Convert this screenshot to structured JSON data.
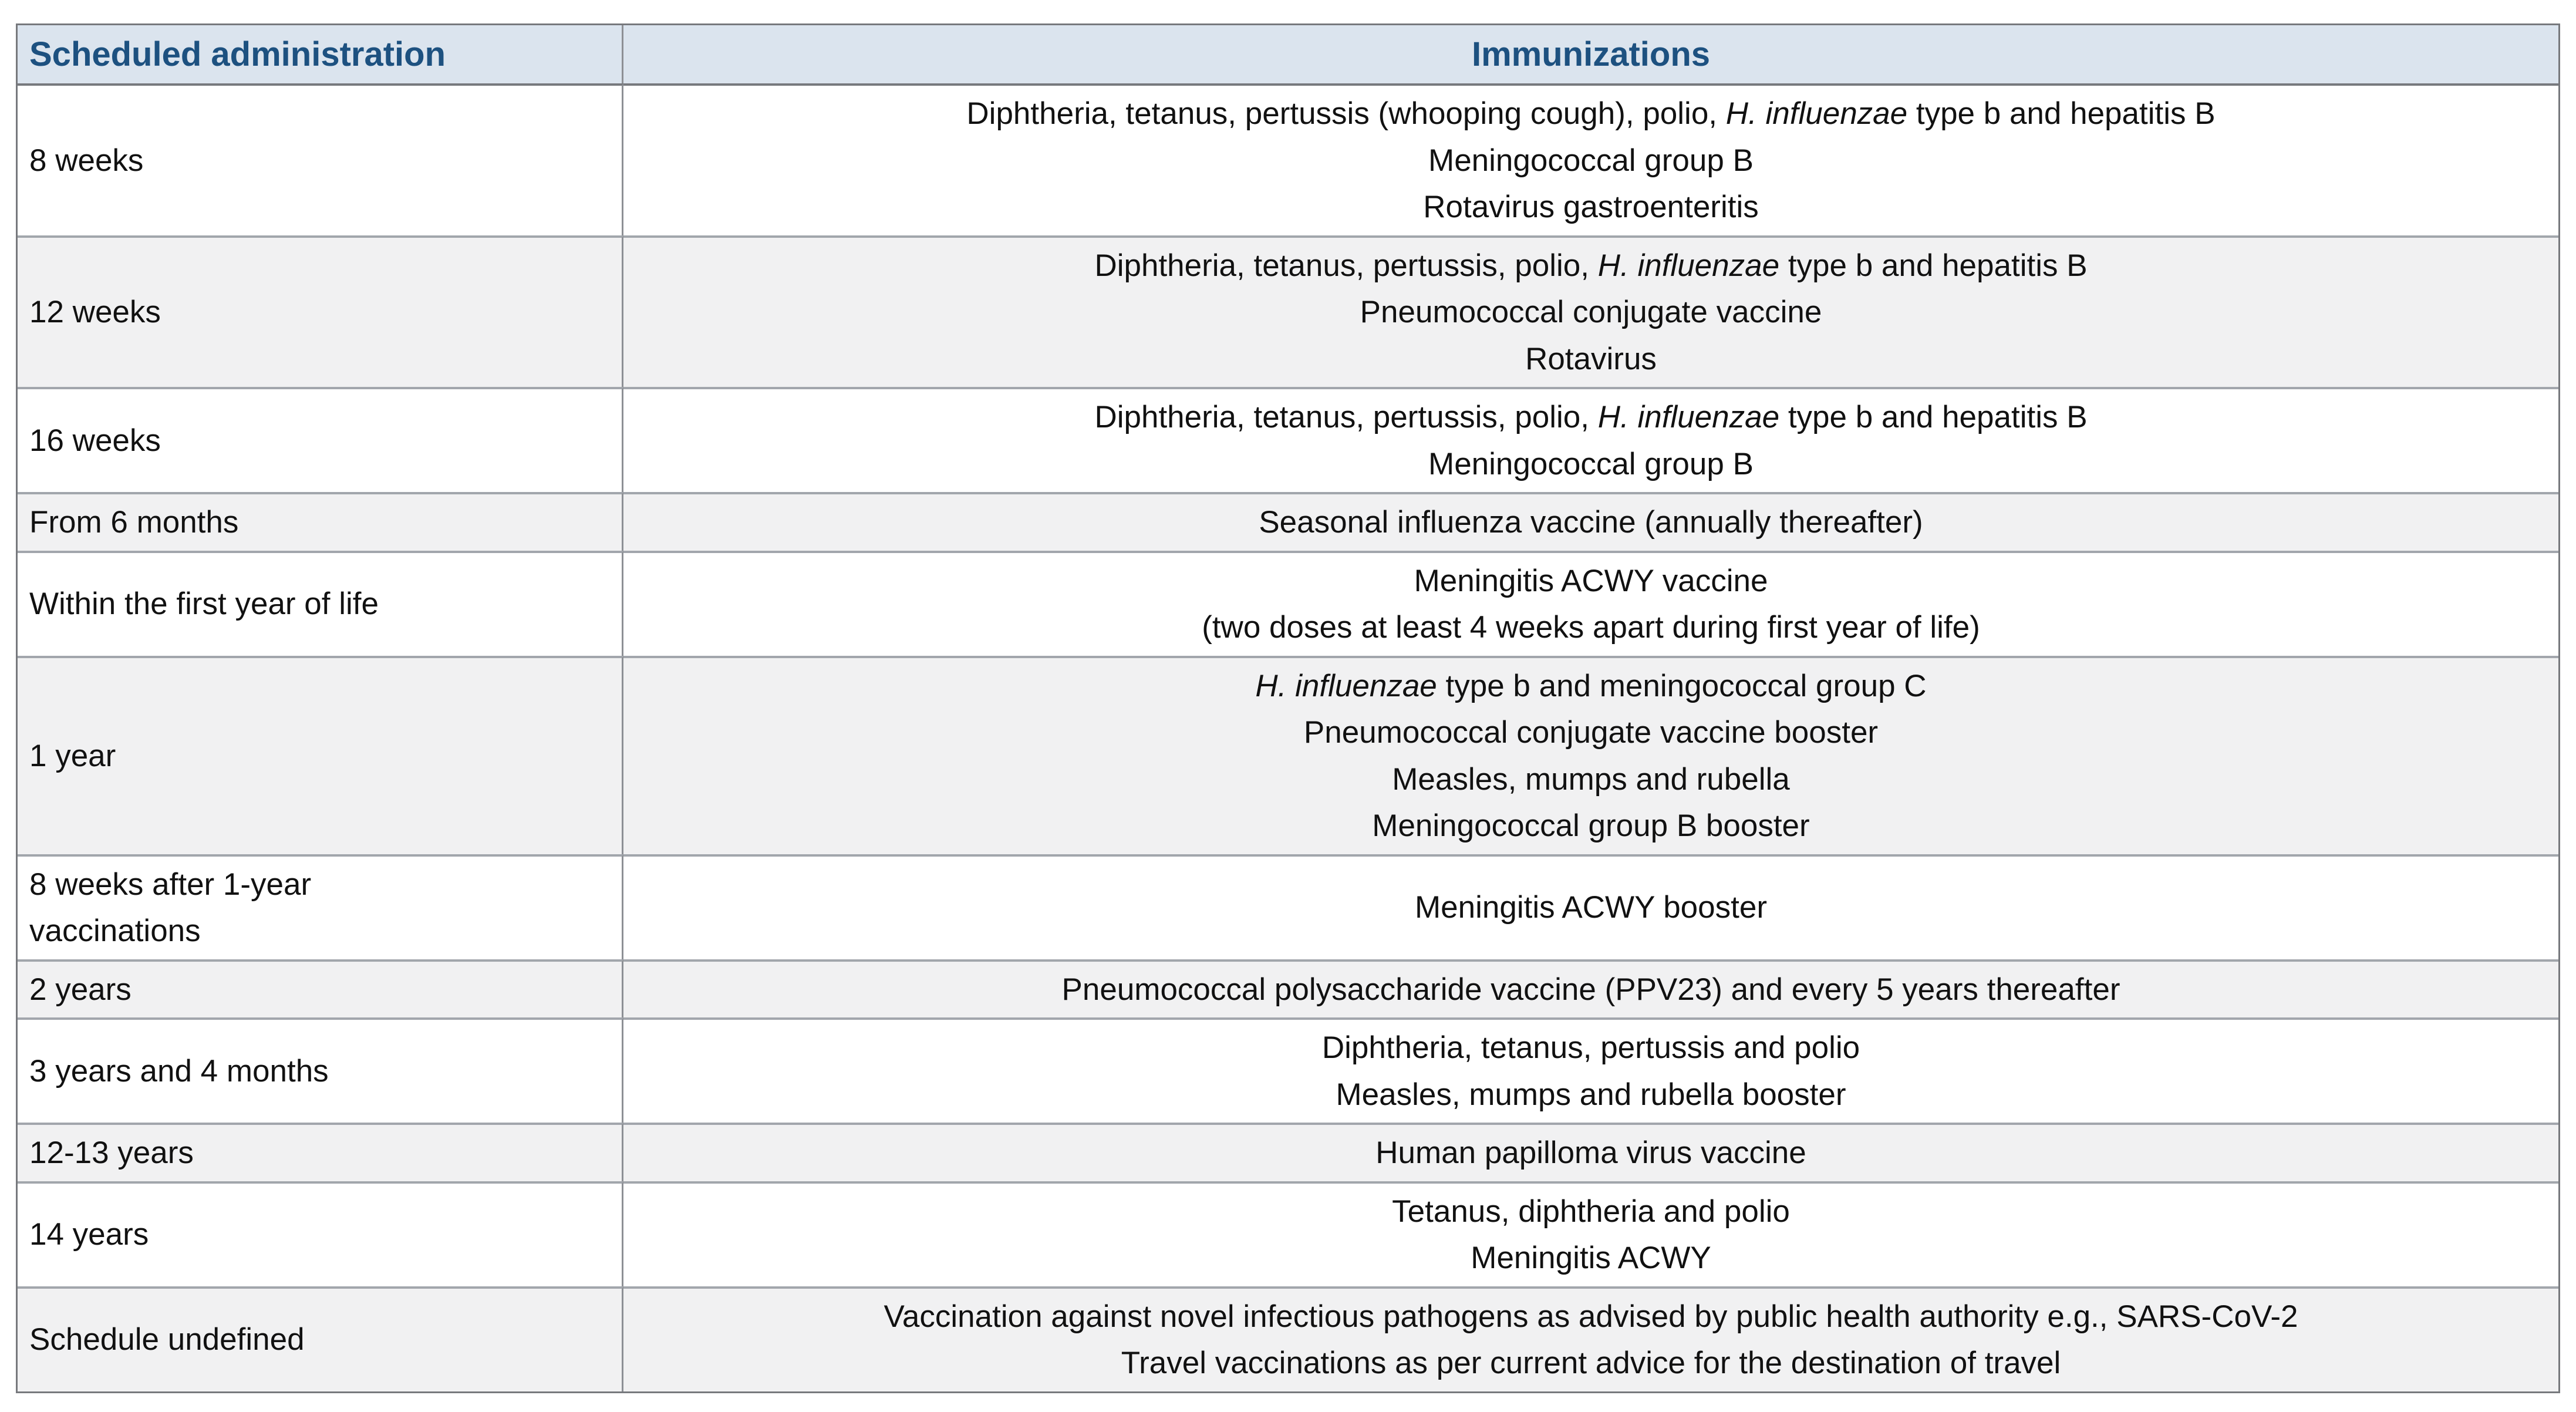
{
  "colors": {
    "header_bg": "#dbe4ee",
    "header_fg": "#1d5180",
    "alt_row_bg": "#f1f1f2",
    "outer_border": "#77797d",
    "row_separator": "#a2a6ac",
    "col_separator": "#8d9095",
    "body_text": "#111111",
    "page_bg": "#ffffff"
  },
  "table": {
    "headers": [
      {
        "label": "Scheduled administration"
      },
      {
        "label": "Immunizations"
      }
    ],
    "rows": [
      {
        "schedule": "8 weeks",
        "immunizations": [
          [
            {
              "text": "Diphtheria, tetanus, pertussis (whooping cough), polio, "
            },
            {
              "text": "H. influenzae",
              "italic": true
            },
            {
              "text": " type b and hepatitis B"
            }
          ],
          [
            {
              "text": "Meningococcal group B"
            }
          ],
          [
            {
              "text": "Rotavirus gastroenteritis"
            }
          ]
        ]
      },
      {
        "schedule": "12 weeks",
        "immunizations": [
          [
            {
              "text": "Diphtheria, tetanus, pertussis, polio, "
            },
            {
              "text": "H. influenzae",
              "italic": true
            },
            {
              "text": " type b and hepatitis B"
            }
          ],
          [
            {
              "text": "Pneumococcal conjugate vaccine"
            }
          ],
          [
            {
              "text": "Rotavirus"
            }
          ]
        ]
      },
      {
        "schedule": "16 weeks",
        "immunizations": [
          [
            {
              "text": "Diphtheria, tetanus, pertussis, polio, "
            },
            {
              "text": "H. influenzae",
              "italic": true
            },
            {
              "text": " type b and hepatitis B"
            }
          ],
          [
            {
              "text": "Meningococcal group B"
            }
          ]
        ]
      },
      {
        "schedule": "From 6 months",
        "immunizations": [
          [
            {
              "text": "Seasonal influenza vaccine (annually thereafter)"
            }
          ]
        ]
      },
      {
        "schedule": "Within the first year of life",
        "immunizations": [
          [
            {
              "text": "Meningitis ACWY vaccine"
            }
          ],
          [
            {
              "text": "(two doses at least 4 weeks apart during first year of life)"
            }
          ]
        ]
      },
      {
        "schedule": "1 year",
        "immunizations": [
          [
            {
              "text": "H. influenzae",
              "italic": true
            },
            {
              "text": " type b and meningococcal group C"
            }
          ],
          [
            {
              "text": "Pneumococcal conjugate vaccine booster"
            }
          ],
          [
            {
              "text": "Measles, mumps and rubella"
            }
          ],
          [
            {
              "text": "Meningococcal group B booster"
            }
          ]
        ]
      },
      {
        "schedule": "8 weeks after 1-year\nvaccinations",
        "immunizations": [
          [
            {
              "text": "Meningitis ACWY booster"
            }
          ]
        ]
      },
      {
        "schedule": "2 years",
        "immunizations": [
          [
            {
              "text": "Pneumococcal polysaccharide vaccine (PPV23) and every 5 years thereafter"
            }
          ]
        ]
      },
      {
        "schedule": "3 years and 4 months",
        "immunizations": [
          [
            {
              "text": "Diphtheria, tetanus, pertussis and polio"
            }
          ],
          [
            {
              "text": "Measles, mumps and rubella booster"
            }
          ]
        ]
      },
      {
        "schedule": "12-13 years",
        "immunizations": [
          [
            {
              "text": "Human papilloma virus vaccine"
            }
          ]
        ]
      },
      {
        "schedule": "14 years",
        "immunizations": [
          [
            {
              "text": "Tetanus, diphtheria and polio"
            }
          ],
          [
            {
              "text": "Meningitis ACWY"
            }
          ]
        ]
      },
      {
        "schedule": "Schedule undefined",
        "immunizations": [
          [
            {
              "text": "Vaccination against novel infectious pathogens as advised by public health authority e.g., SARS-CoV-2"
            }
          ],
          [
            {
              "text": "Travel vaccinations as per current advice for the destination of travel"
            }
          ]
        ]
      }
    ]
  }
}
